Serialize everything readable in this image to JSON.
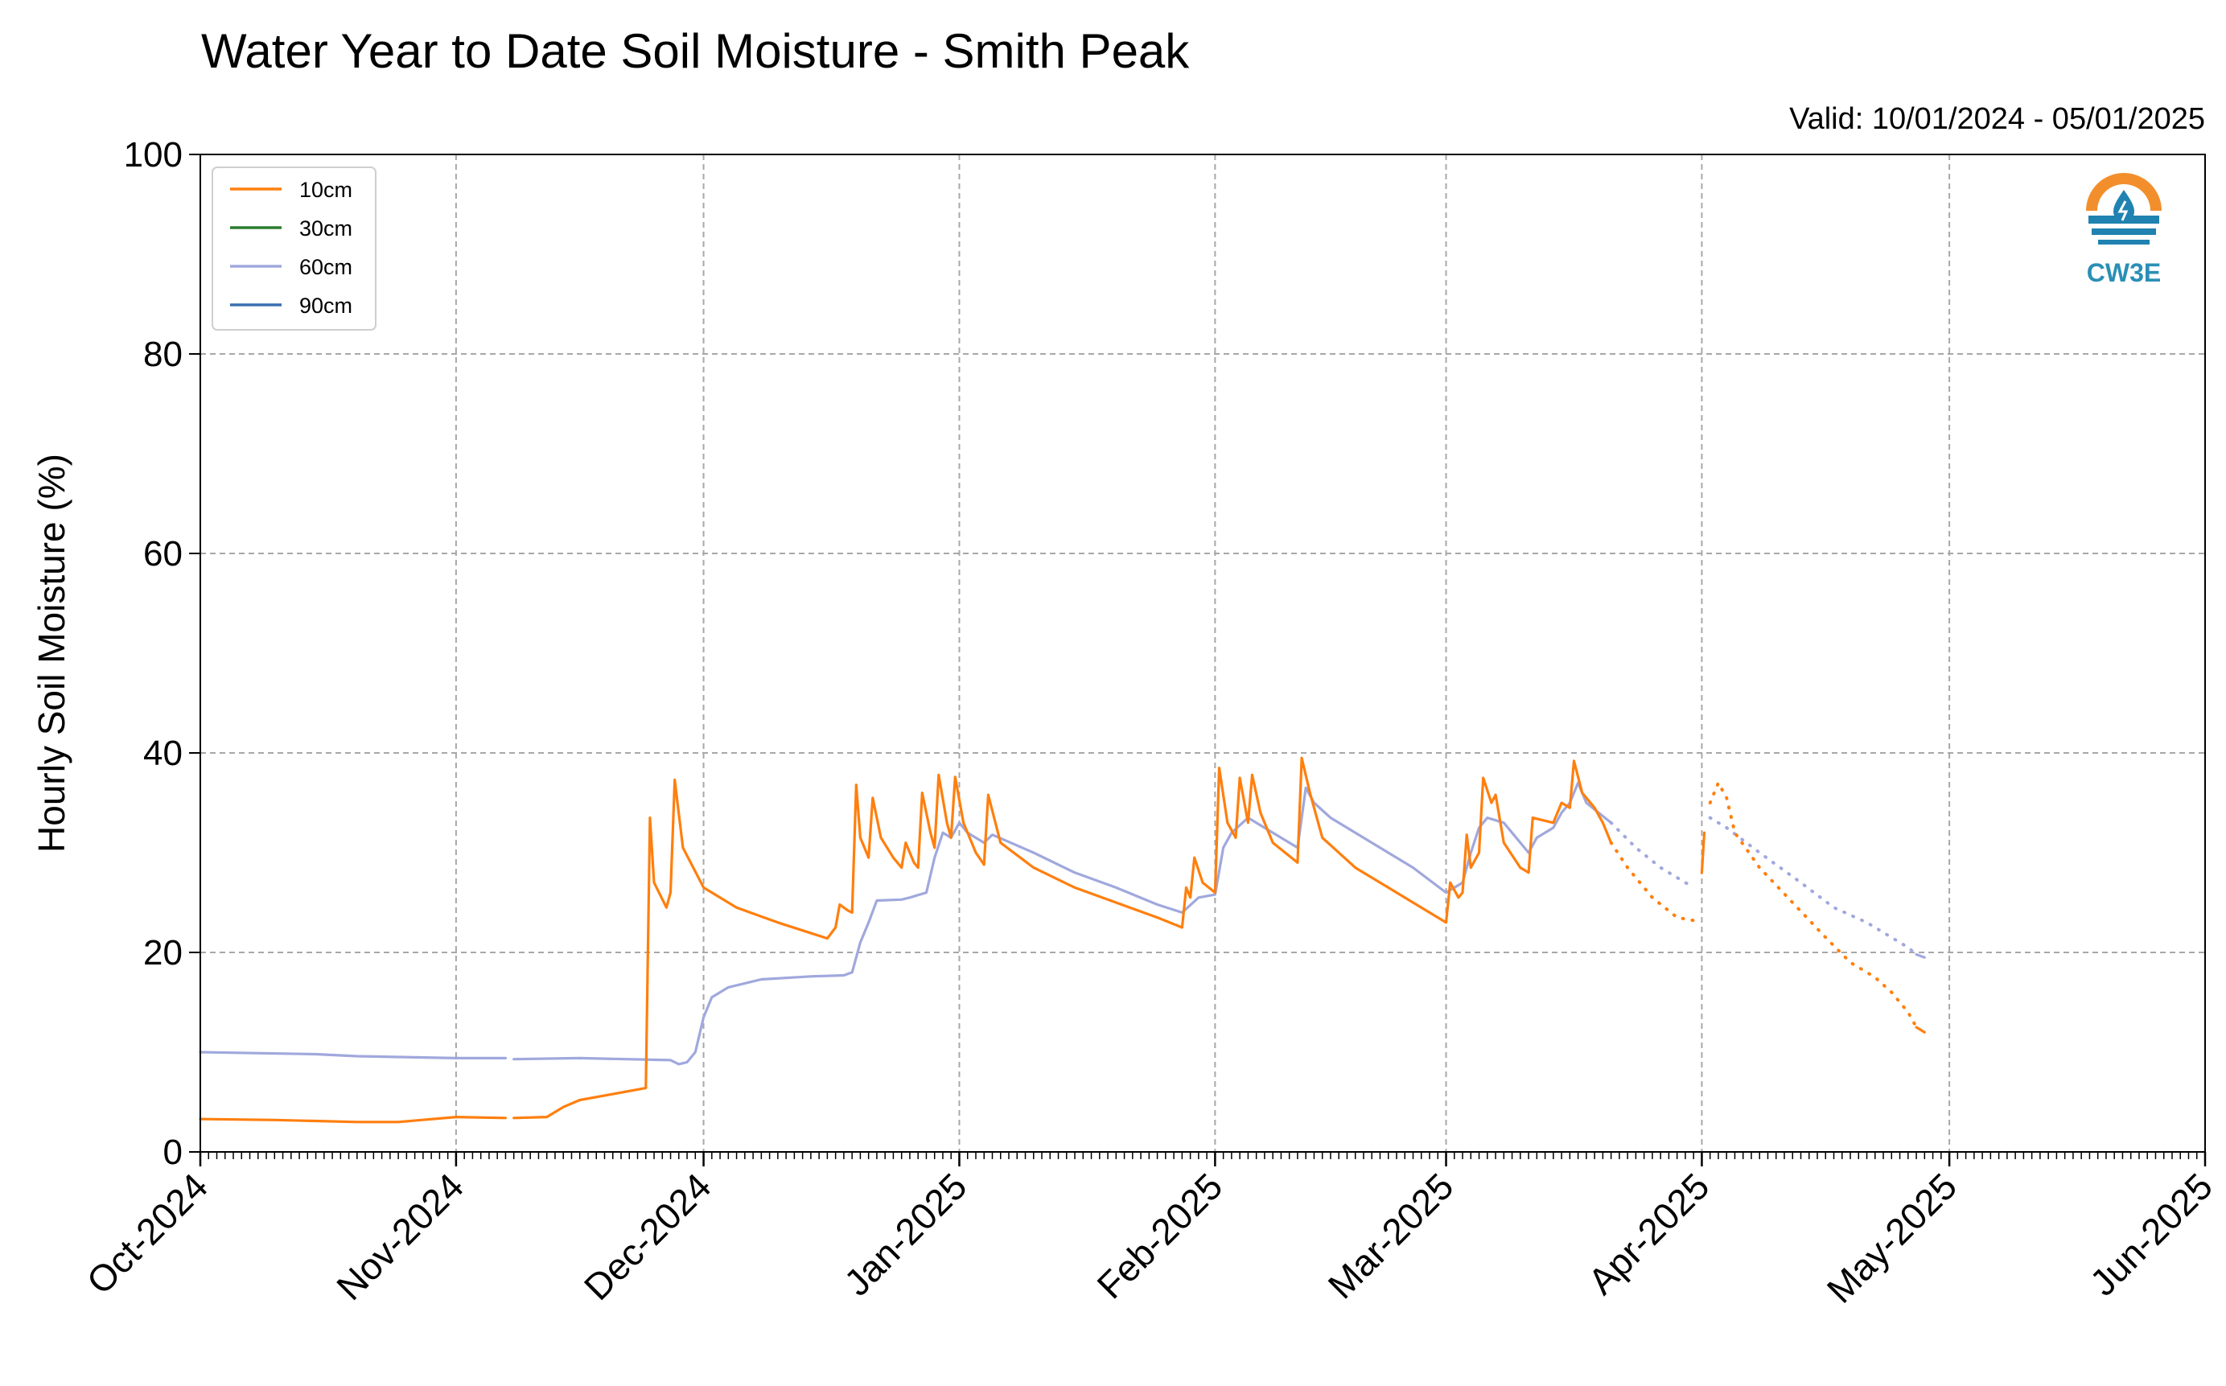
{
  "chart_data": {
    "type": "line",
    "title": "Water Year to Date Soil Moisture - Smith Peak",
    "subtitle": "Valid: 10/01/2024 - 05/01/2025",
    "ylabel": "Hourly Soil Moisture (%)",
    "xlabel": "",
    "ylim": [
      0,
      100
    ],
    "yticks": [
      0,
      20,
      40,
      60,
      80,
      100
    ],
    "xlim": [
      "2024-10-01",
      "2025-06-01"
    ],
    "xticks": [
      {
        "date": "2024-10-01",
        "label": "Oct-2024"
      },
      {
        "date": "2024-11-01",
        "label": "Nov-2024"
      },
      {
        "date": "2024-12-01",
        "label": "Dec-2024"
      },
      {
        "date": "2025-01-01",
        "label": "Jan-2025"
      },
      {
        "date": "2025-02-01",
        "label": "Feb-2025"
      },
      {
        "date": "2025-03-01",
        "label": "Mar-2025"
      },
      {
        "date": "2025-04-01",
        "label": "Apr-2025"
      },
      {
        "date": "2025-05-01",
        "label": "May-2025"
      },
      {
        "date": "2025-06-01",
        "label": "Jun-2025"
      }
    ],
    "grid": true,
    "legend_position": "top-left",
    "series": [
      {
        "name": "10cm",
        "color": "#ff7f0e",
        "segments": [
          {
            "style": "solid",
            "points": [
              [
                "2024-10-01",
                3.3
              ],
              [
                "2024-10-10",
                3.2
              ],
              [
                "2024-10-20",
                3.0
              ],
              [
                "2024-10-25",
                3.0
              ],
              [
                "2024-11-01",
                3.5
              ],
              [
                "2024-11-07",
                3.4
              ]
            ]
          },
          {
            "style": "solid",
            "points": [
              [
                "2024-11-08",
                3.4
              ],
              [
                "2024-11-12",
                3.5
              ],
              [
                "2024-11-14",
                4.5
              ],
              [
                "2024-11-16",
                5.2
              ],
              [
                "2024-11-20",
                5.8
              ],
              [
                "2024-11-24",
                6.4
              ],
              [
                "2024-11-24.5",
                33.5
              ],
              [
                "2024-11-25",
                27.0
              ],
              [
                "2024-11-26.5",
                24.5
              ],
              [
                "2024-11-27",
                26.0
              ],
              [
                "2024-11-27.5",
                37.3
              ],
              [
                "2024-11-28.5",
                30.5
              ],
              [
                "2024-12-01",
                26.5
              ],
              [
                "2024-12-05",
                24.5
              ],
              [
                "2024-12-10",
                23.0
              ],
              [
                "2024-12-16",
                21.4
              ],
              [
                "2024-12-17",
                22.5
              ],
              [
                "2024-12-17.5",
                24.8
              ],
              [
                "2024-12-18.5",
                24.2
              ],
              [
                "2024-12-19",
                24.0
              ],
              [
                "2024-12-19.5",
                36.8
              ],
              [
                "2024-12-20",
                31.5
              ],
              [
                "2024-12-21",
                29.5
              ],
              [
                "2024-12-21.5",
                35.5
              ],
              [
                "2024-12-22.5",
                31.5
              ],
              [
                "2024-12-24",
                29.5
              ],
              [
                "2024-12-25",
                28.5
              ],
              [
                "2024-12-25.5",
                31.0
              ],
              [
                "2024-12-26.5",
                29.0
              ],
              [
                "2024-12-27",
                28.5
              ],
              [
                "2024-12-27.5",
                36.0
              ],
              [
                "2024-12-28.5",
                32.0
              ],
              [
                "2024-12-29",
                30.5
              ],
              [
                "2024-12-29.5",
                37.8
              ],
              [
                "2024-12-30.5",
                33.0
              ],
              [
                "2024-12-31",
                31.5
              ],
              [
                "2024-12-31.5",
                37.6
              ],
              [
                "2025-01-01.5",
                33.0
              ],
              [
                "2025-01-03",
                30.0
              ],
              [
                "2025-01-04",
                28.8
              ],
              [
                "2025-01-04.5",
                35.8
              ],
              [
                "2025-01-06",
                31.0
              ],
              [
                "2025-01-10",
                28.5
              ],
              [
                "2025-01-15",
                26.5
              ],
              [
                "2025-01-20",
                25.0
              ],
              [
                "2025-01-25",
                23.5
              ],
              [
                "2025-01-28",
                22.5
              ],
              [
                "2025-01-28.5",
                26.5
              ],
              [
                "2025-01-29",
                25.5
              ],
              [
                "2025-01-29.5",
                29.5
              ],
              [
                "2025-01-30.5",
                27.0
              ],
              [
                "2025-02-01",
                26.0
              ],
              [
                "2025-02-01.5",
                38.5
              ],
              [
                "2025-02-02.5",
                33.0
              ],
              [
                "2025-02-03.5",
                31.5
              ],
              [
                "2025-02-04",
                37.5
              ],
              [
                "2025-02-05",
                33.0
              ],
              [
                "2025-02-05.5",
                37.8
              ],
              [
                "2025-02-06.5",
                34.0
              ],
              [
                "2025-02-08",
                31.0
              ],
              [
                "2025-02-11",
                29.0
              ],
              [
                "2025-02-11.5",
                39.5
              ],
              [
                "2025-02-12.5",
                36.0
              ],
              [
                "2025-02-14",
                31.5
              ],
              [
                "2025-02-18",
                28.5
              ],
              [
                "2025-02-22",
                26.5
              ],
              [
                "2025-02-26",
                24.5
              ],
              [
                "2025-03-01",
                23.0
              ],
              [
                "2025-03-01.5",
                27.0
              ],
              [
                "2025-03-02.5",
                25.5
              ],
              [
                "2025-03-03",
                26.0
              ],
              [
                "2025-03-03.5",
                31.8
              ],
              [
                "2025-03-04",
                28.5
              ],
              [
                "2025-03-05",
                30.0
              ],
              [
                "2025-03-05.5",
                37.5
              ],
              [
                "2025-03-06.5",
                35.0
              ],
              [
                "2025-03-07",
                35.8
              ],
              [
                "2025-03-08",
                31.0
              ],
              [
                "2025-03-10",
                28.5
              ],
              [
                "2025-03-11",
                28.0
              ],
              [
                "2025-03-11.5",
                33.5
              ],
              [
                "2025-03-14",
                33.0
              ],
              [
                "2025-03-15",
                35.0
              ],
              [
                "2025-03-16",
                34.5
              ],
              [
                "2025-03-16.5",
                39.2
              ],
              [
                "2025-03-17.5",
                36.0
              ],
              [
                "2025-03-19",
                34.5
              ],
              [
                "2025-03-20",
                33.0
              ],
              [
                "2025-03-21",
                31.0
              ]
            ]
          },
          {
            "style": "dotted",
            "points": [
              [
                "2025-03-21",
                31.0
              ],
              [
                "2025-03-23",
                28.5
              ],
              [
                "2025-03-26",
                25.5
              ],
              [
                "2025-03-29",
                23.5
              ],
              [
                "2025-03-31",
                23.2
              ]
            ]
          },
          {
            "style": "solid",
            "points": [
              [
                "2025-04-01",
                28.0
              ],
              [
                "2025-04-01.3",
                32.0
              ]
            ]
          },
          {
            "style": "dotted",
            "points": [
              [
                "2025-04-02",
                35.0
              ],
              [
                "2025-04-03",
                37.0
              ],
              [
                "2025-04-04",
                35.5
              ],
              [
                "2025-04-05",
                32.0
              ],
              [
                "2025-04-08",
                28.5
              ],
              [
                "2025-04-12",
                25.0
              ],
              [
                "2025-04-16",
                21.5
              ],
              [
                "2025-04-19",
                19.0
              ],
              [
                "2025-04-22",
                17.5
              ],
              [
                "2025-04-24",
                16.0
              ],
              [
                "2025-04-26",
                14.0
              ],
              [
                "2025-04-27",
                12.5
              ]
            ]
          },
          {
            "style": "solid",
            "points": [
              [
                "2025-04-27",
                12.5
              ],
              [
                "2025-04-28",
                12.0
              ]
            ]
          }
        ]
      },
      {
        "name": "30cm",
        "color": "#2a7d2e",
        "segments": []
      },
      {
        "name": "60cm",
        "color": "#a0a8dd",
        "segments": [
          {
            "style": "solid",
            "points": [
              [
                "2024-10-01",
                10.0
              ],
              [
                "2024-10-15",
                9.8
              ],
              [
                "2024-10-20",
                9.6
              ],
              [
                "2024-11-01",
                9.4
              ],
              [
                "2024-11-07",
                9.4
              ]
            ]
          },
          {
            "style": "solid",
            "points": [
              [
                "2024-11-08",
                9.3
              ],
              [
                "2024-11-16",
                9.4
              ],
              [
                "2024-11-27",
                9.2
              ],
              [
                "2024-11-28",
                8.8
              ],
              [
                "2024-11-29",
                9.0
              ],
              [
                "2024-11-30",
                10.0
              ],
              [
                "2024-12-01",
                13.5
              ],
              [
                "2024-12-02",
                15.5
              ],
              [
                "2024-12-04",
                16.5
              ],
              [
                "2024-12-08",
                17.3
              ],
              [
                "2024-12-14",
                17.6
              ],
              [
                "2024-12-18",
                17.7
              ],
              [
                "2024-12-19",
                18.0
              ],
              [
                "2024-12-20",
                21.0
              ],
              [
                "2024-12-21",
                23.0
              ],
              [
                "2024-12-22",
                25.2
              ],
              [
                "2024-12-25",
                25.3
              ],
              [
                "2024-12-26",
                25.5
              ],
              [
                "2024-12-28",
                26.0
              ],
              [
                "2024-12-29",
                29.5
              ],
              [
                "2024-12-30",
                32.0
              ],
              [
                "2024-12-31",
                31.5
              ],
              [
                "2025-01-01",
                33.0
              ],
              [
                "2025-01-02",
                32.0
              ],
              [
                "2025-01-04",
                31.0
              ],
              [
                "2025-01-05",
                31.8
              ],
              [
                "2025-01-10",
                30.0
              ],
              [
                "2025-01-15",
                28.0
              ],
              [
                "2025-01-20",
                26.5
              ],
              [
                "2025-01-25",
                24.8
              ],
              [
                "2025-01-28",
                24.0
              ],
              [
                "2025-01-30",
                25.5
              ],
              [
                "2025-02-01",
                25.8
              ],
              [
                "2025-02-02",
                30.5
              ],
              [
                "2025-02-03",
                32.0
              ],
              [
                "2025-02-05",
                33.5
              ],
              [
                "2025-02-08",
                32.0
              ],
              [
                "2025-02-11",
                30.5
              ],
              [
                "2025-02-12",
                36.5
              ],
              [
                "2025-02-13",
                35.0
              ],
              [
                "2025-02-15",
                33.5
              ],
              [
                "2025-02-20",
                31.0
              ],
              [
                "2025-02-25",
                28.5
              ],
              [
                "2025-03-01",
                26.0
              ],
              [
                "2025-03-03",
                27.0
              ],
              [
                "2025-03-04",
                30.0
              ],
              [
                "2025-03-05",
                32.5
              ],
              [
                "2025-03-06",
                33.5
              ],
              [
                "2025-03-08",
                33.0
              ],
              [
                "2025-03-11",
                30.0
              ],
              [
                "2025-03-12",
                31.5
              ],
              [
                "2025-03-14",
                32.5
              ],
              [
                "2025-03-15",
                34.0
              ],
              [
                "2025-03-16",
                35.0
              ],
              [
                "2025-03-17",
                37.0
              ],
              [
                "2025-03-18",
                35.0
              ],
              [
                "2025-03-21",
                33.0
              ]
            ]
          },
          {
            "style": "dotted",
            "points": [
              [
                "2025-03-21",
                33.0
              ],
              [
                "2025-03-24",
                30.5
              ],
              [
                "2025-03-27",
                28.5
              ],
              [
                "2025-03-31",
                26.5
              ]
            ]
          },
          {
            "style": "dotted",
            "points": [
              [
                "2025-04-02",
                33.5
              ],
              [
                "2025-04-04",
                32.5
              ],
              [
                "2025-04-08",
                30.0
              ],
              [
                "2025-04-13",
                27.0
              ],
              [
                "2025-04-17",
                24.5
              ],
              [
                "2025-04-21",
                23.0
              ],
              [
                "2025-04-24",
                21.5
              ],
              [
                "2025-04-26",
                20.5
              ],
              [
                "2025-04-27",
                19.8
              ]
            ]
          },
          {
            "style": "solid",
            "points": [
              [
                "2025-04-27",
                19.8
              ],
              [
                "2025-04-28",
                19.5
              ]
            ]
          }
        ]
      },
      {
        "name": "90cm",
        "color": "#3a6fb0",
        "segments": []
      }
    ]
  },
  "logo": {
    "text": "CW3E",
    "text_color": "#2a8fb5",
    "sun_color": "#f28f2c",
    "water_color": "#1f82b0"
  }
}
